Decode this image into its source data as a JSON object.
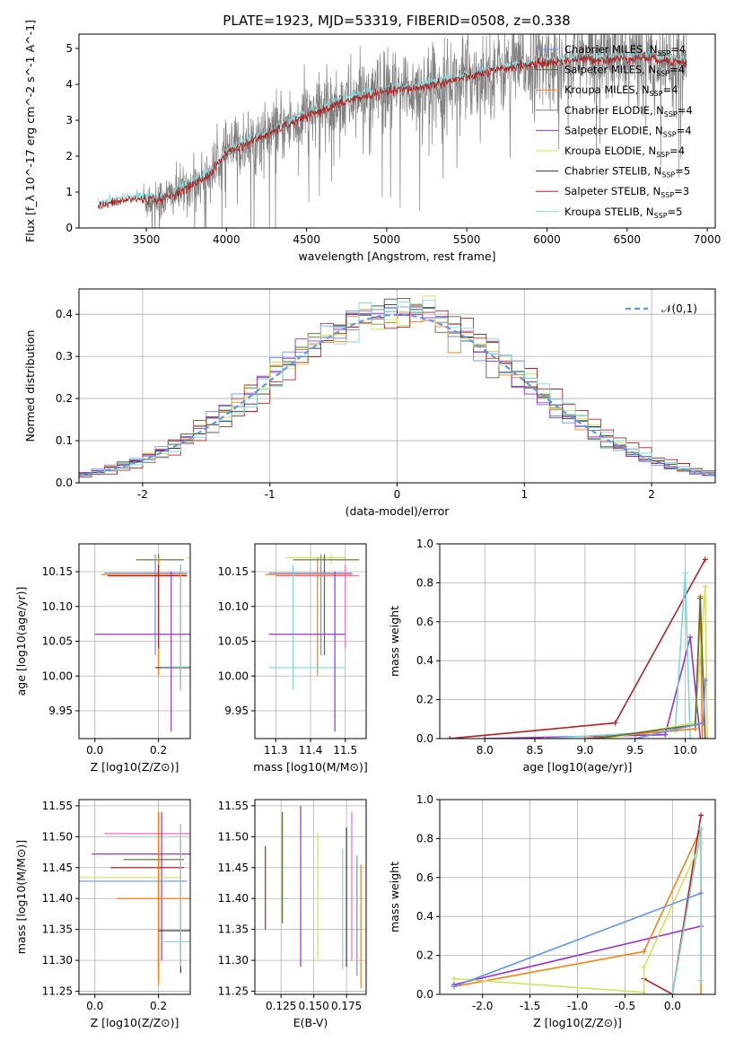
{
  "figure_title": "PLATE=1923, MJD=53319, FIBERID=0508, z=0.338",
  "legend_models": [
    {
      "label": "Chabrier MILES, N",
      "sub": "SSP",
      "suffix": "=4",
      "color": "#6495ed"
    },
    {
      "label": "Salpeter MILES, N",
      "sub": "SSP",
      "suffix": "=4",
      "color": "#556b2f"
    },
    {
      "label": "Kroupa MILES, N",
      "sub": "SSP",
      "suffix": "=4",
      "color": "#ff7f0e"
    },
    {
      "label": "Chabrier ELODIE, N",
      "sub": "SSP",
      "suffix": "=4",
      "color": "#708090"
    },
    {
      "label": "Salpeter ELODIE, N",
      "sub": "SSP",
      "suffix": "=4",
      "color": "#9932cc"
    },
    {
      "label": "Kroupa ELODIE, N",
      "sub": "SSP",
      "suffix": "=4",
      "color": "#d4e157"
    },
    {
      "label": "Chabrier STELIB, N",
      "sub": "SSP",
      "suffix": "=5",
      "color": "#333333"
    },
    {
      "label": "Salpeter STELIB, N",
      "sub": "SSP",
      "suffix": "=3",
      "color": "#b22222"
    },
    {
      "label": "Kroupa STELIB, N",
      "sub": "SSP",
      "suffix": "=5",
      "color": "#7fd8d8"
    }
  ],
  "chart_data": [
    {
      "id": "spectrum",
      "type": "line",
      "title": "PLATE=1923, MJD=53319, FIBERID=0508, z=0.338",
      "xlabel": "wavelength [Angstrom, rest frame]",
      "ylabel": "Flux [f_λ 10^-17 erg cm^-2 s^-1 A^-1]",
      "xlim": [
        3080,
        7050
      ],
      "ylim": [
        0,
        5.4
      ],
      "xticks": [
        3500,
        4000,
        4500,
        5000,
        5500,
        6000,
        6500,
        7000
      ],
      "yticks": [
        0,
        1,
        2,
        3,
        4,
        5
      ],
      "continuum": [
        [
          3200,
          0.6
        ],
        [
          3400,
          0.8
        ],
        [
          3600,
          0.8
        ],
        [
          3750,
          1.1
        ],
        [
          3900,
          1.5
        ],
        [
          4000,
          2.1
        ],
        [
          4200,
          2.5
        ],
        [
          4400,
          2.9
        ],
        [
          4600,
          3.3
        ],
        [
          4800,
          3.6
        ],
        [
          5000,
          3.8
        ],
        [
          5200,
          3.9
        ],
        [
          5400,
          4.1
        ],
        [
          5600,
          4.3
        ],
        [
          5800,
          4.5
        ],
        [
          6000,
          4.6
        ],
        [
          6200,
          4.7
        ],
        [
          6400,
          4.7
        ],
        [
          6600,
          4.75
        ],
        [
          6870,
          4.6
        ]
      ],
      "data_range": [
        3480,
        6870
      ],
      "model_range": [
        3200,
        6870
      ],
      "grid": false
    },
    {
      "id": "residual_hist",
      "type": "step",
      "xlabel": "(data-model)/error",
      "ylabel": "Normed distribution",
      "xlim": [
        -2.5,
        2.5
      ],
      "ylim": [
        0,
        0.46
      ],
      "xticks": [
        -2,
        -1,
        0,
        1,
        2
      ],
      "yticks": [
        0.0,
        0.1,
        0.2,
        0.3,
        0.4
      ],
      "legend": "𝒩(0,1)",
      "bin_width": 0.1,
      "grid": true
    },
    {
      "id": "age_vs_Z",
      "type": "errorbar",
      "xlabel": "Z [log10(Z/Z⊙)]",
      "ylabel": "age [log10(age/yr)]",
      "xlim": [
        -0.05,
        0.3
      ],
      "ylim": [
        9.91,
        10.19
      ],
      "xticks": [
        0.0,
        0.2
      ],
      "yticks": [
        9.95,
        10.0,
        10.05,
        10.1,
        10.15
      ],
      "points": [
        {
          "x": 0.2,
          "y": 10.17,
          "xerr": [
            0.4,
            0.29
          ],
          "yerr": [
            10.16,
            10.175
          ],
          "color": "#d4e157"
        },
        {
          "x": 0.2,
          "y": 10.167,
          "xerr": [
            0.13,
            0.28
          ],
          "yerr": [
            10.03,
            10.175
          ],
          "color": "#556b2f"
        },
        {
          "x": 0.19,
          "y": 10.148,
          "xerr": [
            0.03,
            0.29
          ],
          "yerr": [
            10.03,
            10.175
          ],
          "color": "#6495ed"
        },
        {
          "x": 0.2,
          "y": 10.146,
          "xerr": [
            0.02,
            0.29
          ],
          "yerr": [
            10.0,
            10.17
          ],
          "color": "#ff7f0e"
        },
        {
          "x": 0.2,
          "y": 10.144,
          "xerr": [
            0.04,
            0.29
          ],
          "yerr": [
            10.04,
            10.16
          ],
          "color": "#b22222"
        },
        {
          "x": 0.27,
          "y": 10.012,
          "xerr": [
            0.19,
            0.3
          ],
          "yerr": [
            9.98,
            10.16
          ],
          "color": "#333333"
        },
        {
          "x": 0.27,
          "y": 10.013,
          "xerr": [
            0.21,
            0.3
          ],
          "yerr": [
            9.98,
            10.16
          ],
          "color": "#7fd8d8"
        },
        {
          "x": 0.24,
          "y": 10.06,
          "xerr": [
            0.0,
            0.3
          ],
          "yerr": [
            9.92,
            10.15
          ],
          "color": "#9932cc"
        }
      ],
      "grid": true
    },
    {
      "id": "age_vs_mass",
      "type": "errorbar",
      "xlabel": "mass [log10(M/M⊙)]",
      "ylabel": "",
      "xlim": [
        11.24,
        11.56
      ],
      "ylim": [
        9.91,
        10.19
      ],
      "xticks": [
        11.3,
        11.4,
        11.5
      ],
      "yticks": [
        9.95,
        10.0,
        10.05,
        10.1,
        10.15
      ],
      "points": [
        {
          "x": 11.46,
          "y": 10.17,
          "xerr": [
            11.33,
            11.5
          ],
          "yerr": [
            10.16,
            10.175
          ],
          "color": "#d4e157"
        },
        {
          "x": 11.44,
          "y": 10.167,
          "xerr": [
            11.35,
            11.54
          ],
          "yerr": [
            10.03,
            10.175
          ],
          "color": "#556b2f"
        },
        {
          "x": 11.43,
          "y": 10.148,
          "xerr": [
            11.28,
            11.52
          ],
          "yerr": [
            10.03,
            10.175
          ],
          "color": "#6495ed"
        },
        {
          "x": 11.42,
          "y": 10.146,
          "xerr": [
            11.27,
            11.52
          ],
          "yerr": [
            10.0,
            10.17
          ],
          "color": "#ff7f0e"
        },
        {
          "x": 11.5,
          "y": 10.144,
          "xerr": [
            11.3,
            11.54
          ],
          "yerr": [
            10.04,
            10.16
          ],
          "color": "#ff69b4"
        },
        {
          "x": 11.35,
          "y": 10.012,
          "xerr": [
            11.28,
            11.5
          ],
          "yerr": [
            9.98,
            10.16
          ],
          "color": "#7fd8d8"
        },
        {
          "x": 11.47,
          "y": 10.06,
          "xerr": [
            11.28,
            11.5
          ],
          "yerr": [
            9.92,
            10.15
          ],
          "color": "#9932cc"
        }
      ],
      "grid": true
    },
    {
      "id": "mw_vs_age",
      "type": "line",
      "xlabel": "age [log10(age/yr)]",
      "ylabel": "mass weight",
      "xlim": [
        7.55,
        10.3
      ],
      "ylim": [
        0.0,
        1.0
      ],
      "xticks": [
        8.0,
        8.5,
        9.0,
        9.5,
        10.0
      ],
      "yticks": [
        0.0,
        0.2,
        0.4,
        0.6,
        0.8,
        1.0
      ],
      "grid": true
    },
    {
      "id": "mass_vs_Z",
      "type": "errorbar",
      "xlabel": "Z [log10(Z/Z⊙)]",
      "ylabel": "mass [log10(M/M⊙)]",
      "xlim": [
        -0.05,
        0.3
      ],
      "ylim": [
        11.245,
        11.56
      ],
      "xticks": [
        0.0,
        0.2
      ],
      "yticks": [
        11.25,
        11.3,
        11.35,
        11.4,
        11.45,
        11.5,
        11.55
      ],
      "grid": true
    },
    {
      "id": "mass_vs_EBV",
      "type": "errorbar",
      "xlabel": "E(B-V)",
      "ylabel": "",
      "xlim": [
        0.105,
        0.19
      ],
      "ylim": [
        11.245,
        11.56
      ],
      "xticks": [
        0.125,
        0.15,
        0.175
      ],
      "yticks": [
        11.25,
        11.3,
        11.35,
        11.4,
        11.45,
        11.5,
        11.55
      ],
      "grid": true
    },
    {
      "id": "mw_vs_Z",
      "type": "line",
      "xlabel": "Z [log10(Z/Z⊙)]",
      "ylabel": "mass weight",
      "xlim": [
        -2.45,
        0.45
      ],
      "ylim": [
        0.0,
        1.0
      ],
      "xticks": [
        -2.0,
        -1.5,
        -1.0,
        -0.5,
        0.0
      ],
      "yticks": [
        0.0,
        0.2,
        0.4,
        0.6,
        0.8,
        1.0
      ],
      "grid": true
    }
  ]
}
